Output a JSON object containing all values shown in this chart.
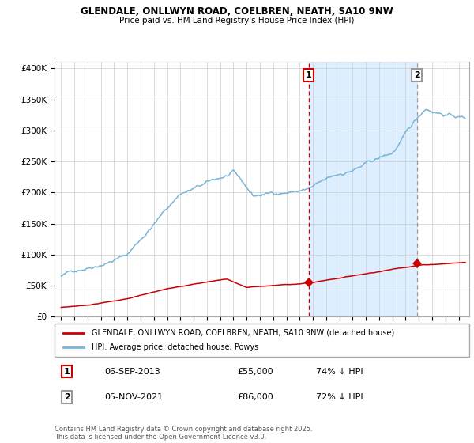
{
  "title": "GLENDALE, ONLLWYN ROAD, COELBREN, NEATH, SA10 9NW",
  "subtitle": "Price paid vs. HM Land Registry's House Price Index (HPI)",
  "legend_entry1": "GLENDALE, ONLLWYN ROAD, COELBREN, NEATH, SA10 9NW (detached house)",
  "legend_entry2": "HPI: Average price, detached house, Powys",
  "annotation1_date": "06-SEP-2013",
  "annotation1_price": "£55,000",
  "annotation1_hpi": "74% ↓ HPI",
  "annotation2_date": "05-NOV-2021",
  "annotation2_price": "£86,000",
  "annotation2_hpi": "72% ↓ HPI",
  "footer": "Contains HM Land Registry data © Crown copyright and database right 2025.\nThis data is licensed under the Open Government Licence v3.0.",
  "sale1_date_num": 2013.68,
  "sale1_price": 55000,
  "sale2_date_num": 2021.84,
  "sale2_price": 86000,
  "hpi_color": "#7ab4d8",
  "price_color": "#cc0000",
  "shade_color": "#ddeeff",
  "vline1_color": "#cc0000",
  "vline2_color": "#999999",
  "background_color": "#ffffff",
  "grid_color": "#cccccc",
  "ylim": [
    0,
    410000
  ],
  "xlim_start": 1994.5,
  "xlim_end": 2025.8
}
